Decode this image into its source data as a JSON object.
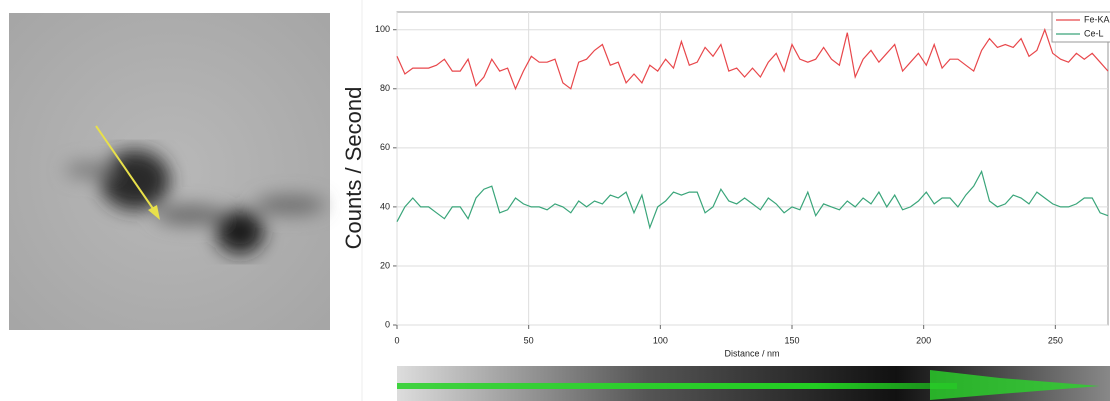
{
  "chart_data": {
    "type": "line",
    "y_label": "Counts / Second",
    "x_label": "Distance / nm",
    "x": [
      0,
      3,
      6,
      9,
      12,
      15,
      18,
      21,
      24,
      27,
      30,
      33,
      36,
      39,
      42,
      45,
      48,
      51,
      54,
      57,
      60,
      63,
      66,
      69,
      72,
      75,
      78,
      81,
      84,
      87,
      90,
      93,
      96,
      99,
      102,
      105,
      108,
      111,
      114,
      117,
      120,
      123,
      126,
      129,
      132,
      135,
      138,
      141,
      144,
      147,
      150,
      153,
      156,
      159,
      162,
      165,
      168,
      171,
      174,
      177,
      180,
      183,
      186,
      189,
      192,
      195,
      198,
      201,
      204,
      207,
      210,
      213,
      216,
      219,
      222,
      225,
      228,
      231,
      234,
      237,
      240,
      243,
      246,
      249,
      252,
      255,
      258,
      261,
      264,
      267,
      270
    ],
    "series": [
      {
        "name": "Fe-KA",
        "color": "#e8474b",
        "values": [
          91,
          85,
          87,
          87,
          87,
          88,
          90,
          86,
          86,
          90,
          81,
          84,
          90,
          86,
          87,
          80,
          86,
          91,
          89,
          89,
          90,
          82,
          80,
          89,
          90,
          93,
          95,
          88,
          89,
          82,
          85,
          82,
          88,
          86,
          90,
          87,
          96,
          88,
          89,
          94,
          91,
          95,
          86,
          87,
          84,
          87,
          84,
          89,
          92,
          86,
          95,
          90,
          89,
          90,
          94,
          90,
          88,
          99,
          84,
          90,
          93,
          89,
          92,
          95,
          86,
          89,
          92,
          88,
          95,
          87,
          90,
          90,
          88,
          86,
          93,
          97,
          94,
          95,
          94,
          97,
          91,
          93,
          100,
          92,
          90,
          89,
          92,
          90,
          92,
          89,
          86
        ]
      },
      {
        "name": "Ce-L",
        "color": "#3aa57a",
        "values": [
          35,
          40,
          43,
          40,
          40,
          38,
          36,
          40,
          40,
          36,
          43,
          46,
          47,
          38,
          39,
          43,
          41,
          40,
          40,
          39,
          41,
          40,
          38,
          42,
          40,
          42,
          41,
          44,
          43,
          45,
          38,
          44,
          33,
          40,
          42,
          45,
          44,
          45,
          45,
          38,
          40,
          46,
          42,
          41,
          43,
          41,
          39,
          43,
          41,
          38,
          40,
          39,
          45,
          37,
          41,
          40,
          39,
          42,
          40,
          43,
          41,
          45,
          40,
          44,
          39,
          40,
          42,
          45,
          41,
          43,
          43,
          40,
          44,
          47,
          52,
          42,
          40,
          41,
          44,
          43,
          41,
          45,
          43,
          41,
          40,
          40,
          41,
          43,
          43,
          38,
          37
        ]
      }
    ],
    "xlim": [
      0,
      270
    ],
    "ylim": [
      0,
      106
    ],
    "xticks": [
      0,
      50,
      100,
      150,
      200,
      250
    ],
    "yticks": [
      0,
      20,
      40,
      60,
      80,
      100
    ],
    "grid": true,
    "legend": "upper right"
  }
}
